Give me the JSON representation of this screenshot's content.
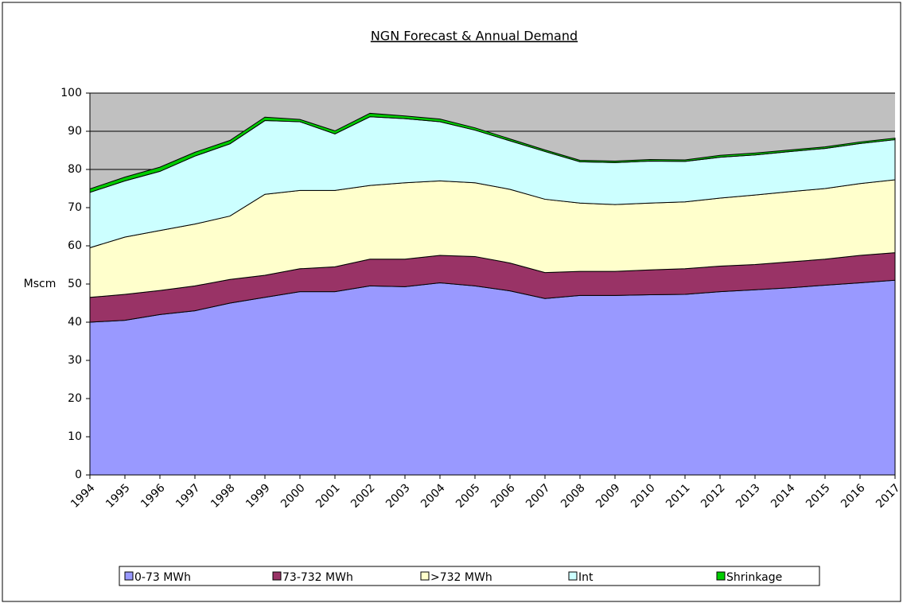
{
  "chart_data": {
    "type": "stacked_area",
    "title": "NGN Forecast & Annual Demand",
    "y_label": "Mscm",
    "categories": [
      "1994",
      "1995",
      "1996",
      "1997",
      "1998",
      "1999",
      "2000",
      "2001",
      "2002",
      "2003",
      "2004",
      "2005",
      "2006",
      "2007",
      "2008",
      "2009",
      "2010",
      "2011",
      "2012",
      "2013",
      "2014",
      "2015",
      "2016",
      "2017"
    ],
    "series": [
      {
        "name": "0-73 MWh",
        "color": "#9999ff",
        "values": [
          40,
          40.5,
          42,
          43,
          45,
          46.5,
          48,
          48,
          49.5,
          49.3,
          50.3,
          49.5,
          48.2,
          46.2,
          47,
          47,
          47.2,
          47.3,
          48,
          48.5,
          49,
          49.7,
          50.3,
          51
        ]
      },
      {
        "name": "73-732 MWh",
        "color": "#993366",
        "values": [
          6.5,
          6.8,
          6.3,
          6.5,
          6.2,
          5.8,
          6,
          6.5,
          7,
          7.2,
          7.2,
          7.7,
          7.3,
          6.8,
          6.3,
          6.3,
          6.5,
          6.7,
          6.7,
          6.6,
          6.8,
          6.8,
          7.2,
          7.2
        ]
      },
      {
        "name": ">732 MWh",
        "color": "#ffffcc",
        "values": [
          13,
          15,
          15.7,
          16.2,
          16.6,
          21.2,
          20.5,
          20,
          19.3,
          20,
          19.5,
          19.3,
          19.3,
          19.2,
          17.9,
          17.5,
          17.5,
          17.5,
          17.8,
          18.2,
          18.4,
          18.5,
          18.8,
          19.1
        ]
      },
      {
        "name": "Int",
        "color": "#ccffff",
        "values": [
          14.5,
          14.7,
          15.5,
          17.8,
          18.9,
          19.3,
          18,
          14.8,
          18,
          16.8,
          15.5,
          13.8,
          12.7,
          12.5,
          10.8,
          11,
          11,
          10.6,
          10.7,
          10.5,
          10.5,
          10.5,
          10.5,
          10.5
        ]
      },
      {
        "name": "Shrinkage",
        "color": "#00cc00",
        "values": [
          0.9,
          1,
          1.1,
          1,
          0.9,
          0.9,
          0.6,
          0.8,
          0.9,
          0.7,
          0.7,
          0.6,
          0.5,
          0.4,
          0.4,
          0.4,
          0.4,
          0.4,
          0.5,
          0.5,
          0.4,
          0.4,
          0.4,
          0.4
        ]
      }
    ],
    "ylim": [
      0,
      100
    ],
    "yticks": [
      0,
      10,
      20,
      30,
      40,
      50,
      60,
      70,
      80,
      90,
      100
    ],
    "grid": true,
    "plot_background": "#c0c0c0",
    "legend": "bottom"
  }
}
